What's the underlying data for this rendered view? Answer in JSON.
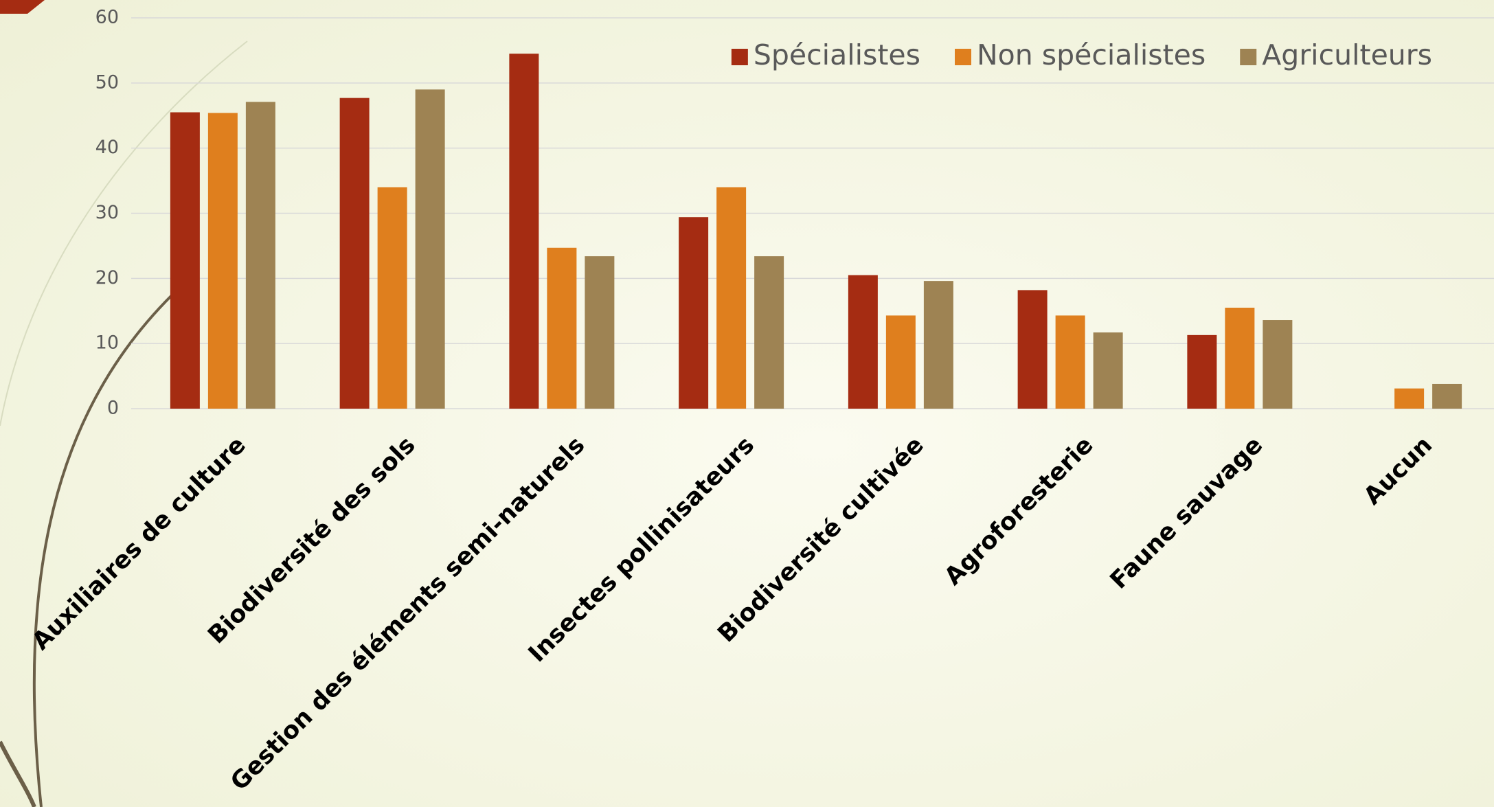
{
  "chart_data": {
    "type": "bar",
    "categories": [
      "Auxiliaires de culture",
      "Biodiversité des sols",
      "Gestion des éléments semi-naturels",
      "Insectes pollinisateurs",
      "Biodiversité cultivée",
      "Agroforesterie",
      "Faune sauvage",
      "Aucun"
    ],
    "series": [
      {
        "name": "Spécialistes",
        "color": "#a52c12",
        "values": [
          45.5,
          47.7,
          54.5,
          29.4,
          20.5,
          18.2,
          11.3,
          0
        ]
      },
      {
        "name": "Non spécialistes",
        "color": "#df7f1e",
        "values": [
          45.4,
          34.0,
          24.7,
          34.0,
          14.3,
          14.3,
          15.5,
          3.1
        ]
      },
      {
        "name": "Agriculteurs",
        "color": "#9e8353",
        "values": [
          47.1,
          49.0,
          23.4,
          23.4,
          19.6,
          11.7,
          13.6,
          3.8
        ]
      }
    ],
    "ylim": [
      0,
      60
    ],
    "yticks": [
      0,
      10,
      20,
      30,
      40,
      50,
      60
    ],
    "grid": true,
    "legend": "top-right"
  }
}
